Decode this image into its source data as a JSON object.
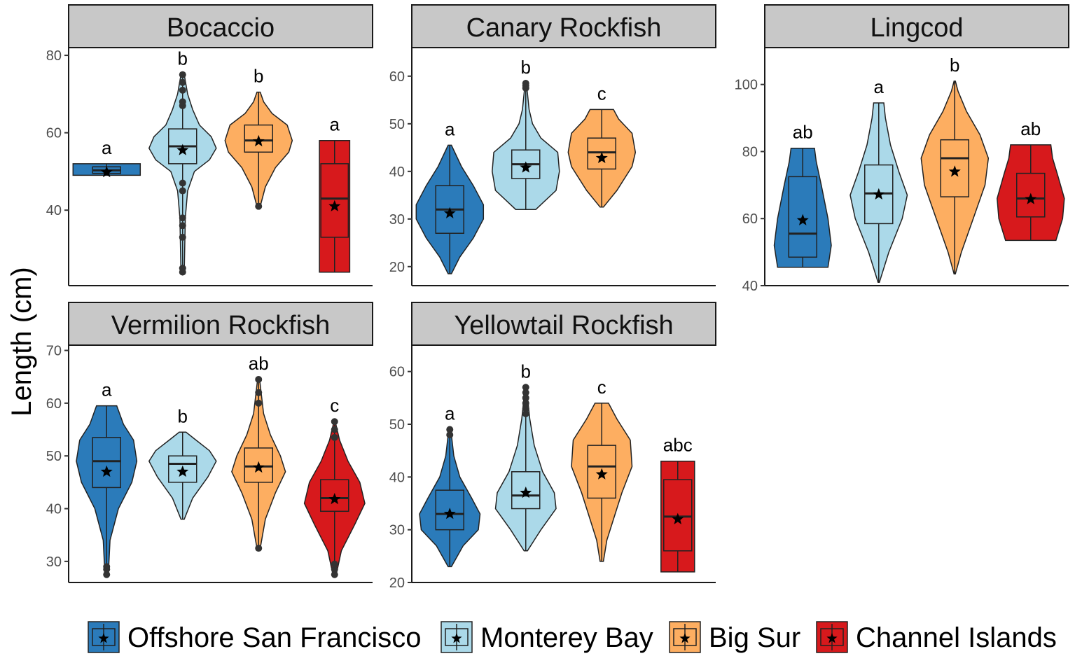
{
  "chart_data": {
    "type": "violin",
    "ylabel": "Length (cm)",
    "groups": [
      {
        "name": "Offshore San Francisco",
        "color": "#2b7bba"
      },
      {
        "name": "Monterey Bay",
        "color": "#abd9e9"
      },
      {
        "name": "Big Sur",
        "color": "#fdae61"
      },
      {
        "name": "Channel Islands",
        "color": "#d7191c"
      }
    ],
    "panels": [
      {
        "title": "Bocaccio",
        "ylim": [
          20.5,
          82
        ],
        "yticks": [
          40,
          60,
          80
        ],
        "violins": [
          {
            "group": 0,
            "min": 49,
            "max": 52,
            "q1": 49.5,
            "median": 50.3,
            "q3": 51.2,
            "mean": 49.8,
            "letter": "a",
            "profile": [
              [
                49,
                1.0
              ],
              [
                49.5,
                1.0
              ],
              [
                50.5,
                1.0
              ],
              [
                51.5,
                1.0
              ],
              [
                52,
                1.0
              ]
            ],
            "outliers": []
          },
          {
            "group": 1,
            "min": 24,
            "max": 75,
            "q1": 52,
            "median": 56.5,
            "q3": 61,
            "mean": 55.5,
            "letter": "b",
            "profile": [
              [
                24,
                0.05
              ],
              [
                38,
                0.08
              ],
              [
                45,
                0.15
              ],
              [
                50,
                0.35
              ],
              [
                53,
                0.8
              ],
              [
                56,
                1.0
              ],
              [
                59,
                0.85
              ],
              [
                62,
                0.5
              ],
              [
                66,
                0.3
              ],
              [
                70,
                0.15
              ],
              [
                75,
                0.05
              ]
            ],
            "outliers": [
              24,
              25,
              33,
              36,
              38,
              45,
              47,
              67,
              68,
              71,
              73,
              75
            ]
          },
          {
            "group": 2,
            "min": 41,
            "max": 70.5,
            "q1": 55,
            "median": 58,
            "q3": 62,
            "mean": 57.8,
            "letter": "b",
            "profile": [
              [
                41,
                0.05
              ],
              [
                46,
                0.2
              ],
              [
                51,
                0.5
              ],
              [
                55,
                0.9
              ],
              [
                58,
                1.0
              ],
              [
                62,
                0.85
              ],
              [
                65,
                0.4
              ],
              [
                68,
                0.15
              ],
              [
                70.5,
                0.05
              ]
            ],
            "outliers": [
              41
            ]
          },
          {
            "group": 3,
            "min": 24,
            "max": 58,
            "q1": 33,
            "median": 43,
            "q3": 52,
            "mean": 41,
            "letter": "a",
            "profile": [
              [
                24,
                0.45
              ],
              [
                58,
                0.45
              ]
            ],
            "outliers": []
          }
        ]
      },
      {
        "title": "Canary Rockfish",
        "ylim": [
          16,
          66
        ],
        "yticks": [
          20,
          30,
          40,
          50,
          60
        ],
        "violins": [
          {
            "group": 0,
            "min": 18.5,
            "max": 45.5,
            "q1": 27,
            "median": 32,
            "q3": 37,
            "mean": 31.2,
            "letter": "a",
            "profile": [
              [
                18.5,
                0.05
              ],
              [
                22,
                0.3
              ],
              [
                26,
                0.7
              ],
              [
                30,
                1.0
              ],
              [
                33,
                1.0
              ],
              [
                37,
                0.7
              ],
              [
                41,
                0.35
              ],
              [
                45.5,
                0.05
              ]
            ],
            "outliers": []
          },
          {
            "group": 1,
            "min": 32,
            "max": 58.5,
            "q1": 38.5,
            "median": 41.5,
            "q3": 44.5,
            "mean": 40.8,
            "letter": "b",
            "profile": [
              [
                32,
                0.3
              ],
              [
                36,
                0.9
              ],
              [
                40,
                1.0
              ],
              [
                44,
                0.95
              ],
              [
                47,
                0.45
              ],
              [
                50,
                0.2
              ],
              [
                53,
                0.1
              ],
              [
                58.5,
                0.02
              ]
            ],
            "outliers": [
              57.5,
              58,
              58.5
            ]
          },
          {
            "group": 2,
            "min": 32.5,
            "max": 53,
            "q1": 40.5,
            "median": 44,
            "q3": 47,
            "mean": 42.8,
            "letter": "c",
            "profile": [
              [
                32.5,
                0.05
              ],
              [
                36,
                0.45
              ],
              [
                41,
                0.9
              ],
              [
                44,
                1.0
              ],
              [
                48,
                0.9
              ],
              [
                51,
                0.5
              ],
              [
                53,
                0.35
              ]
            ],
            "outliers": []
          }
        ]
      },
      {
        "title": "Lingcod",
        "ylim": [
          40,
          111
        ],
        "yticks": [
          40,
          60,
          80,
          100
        ],
        "violins": [
          {
            "group": 0,
            "min": 45.5,
            "max": 81,
            "q1": 48.5,
            "median": 55.5,
            "q3": 72.5,
            "mean": 59.5,
            "letter": "ab",
            "profile": [
              [
                45.5,
                0.75
              ],
              [
                52,
                0.85
              ],
              [
                60,
                0.75
              ],
              [
                70,
                0.55
              ],
              [
                77,
                0.4
              ],
              [
                81,
                0.35
              ]
            ],
            "outliers": []
          },
          {
            "group": 1,
            "min": 41,
            "max": 94.5,
            "q1": 58.5,
            "median": 67.5,
            "q3": 76,
            "mean": 67.2,
            "letter": "a",
            "profile": [
              [
                41,
                0.02
              ],
              [
                50,
                0.3
              ],
              [
                60,
                0.7
              ],
              [
                67,
                0.85
              ],
              [
                74,
                0.6
              ],
              [
                82,
                0.35
              ],
              [
                90,
                0.2
              ],
              [
                94.5,
                0.15
              ]
            ],
            "outliers": []
          },
          {
            "group": 2,
            "min": 43.5,
            "max": 101,
            "q1": 66.5,
            "median": 78,
            "q3": 83.5,
            "mean": 74,
            "letter": "b",
            "profile": [
              [
                43.5,
                0.02
              ],
              [
                50,
                0.2
              ],
              [
                60,
                0.55
              ],
              [
                70,
                0.9
              ],
              [
                78,
                1.0
              ],
              [
                85,
                0.75
              ],
              [
                92,
                0.35
              ],
              [
                98,
                0.1
              ],
              [
                101,
                0.02
              ]
            ],
            "outliers": []
          },
          {
            "group": 3,
            "min": 53.5,
            "max": 82,
            "q1": 60.5,
            "median": 66,
            "q3": 73.5,
            "mean": 65.8,
            "letter": "ab",
            "profile": [
              [
                53.5,
                0.75
              ],
              [
                60,
                0.95
              ],
              [
                66,
                1.0
              ],
              [
                73,
                0.8
              ],
              [
                78,
                0.65
              ],
              [
                82,
                0.6
              ]
            ],
            "outliers": []
          }
        ]
      },
      {
        "title": "Vermilion Rockfish",
        "ylim": [
          26,
          71
        ],
        "yticks": [
          30,
          40,
          50,
          60,
          70
        ],
        "violins": [
          {
            "group": 0,
            "min": 27.5,
            "max": 59.5,
            "q1": 44,
            "median": 49,
            "q3": 53.5,
            "mean": 47,
            "letter": "a",
            "profile": [
              [
                27.5,
                0.05
              ],
              [
                34,
                0.1
              ],
              [
                40,
                0.35
              ],
              [
                45,
                0.75
              ],
              [
                49,
                0.9
              ],
              [
                53,
                0.8
              ],
              [
                56,
                0.5
              ],
              [
                59.5,
                0.3
              ]
            ],
            "outliers": [
              27.5,
              28.5,
              29
            ]
          },
          {
            "group": 1,
            "min": 38,
            "max": 54.5,
            "q1": 45,
            "median": 48.5,
            "q3": 50,
            "mean": 47,
            "letter": "b",
            "profile": [
              [
                38,
                0.05
              ],
              [
                42,
                0.3
              ],
              [
                46,
                0.75
              ],
              [
                49,
                1.0
              ],
              [
                51,
                0.8
              ],
              [
                53,
                0.4
              ],
              [
                54.5,
                0.1
              ]
            ],
            "outliers": []
          },
          {
            "group": 2,
            "min": 32.5,
            "max": 64.5,
            "q1": 45,
            "median": 48,
            "q3": 51.5,
            "mean": 47.8,
            "letter": "ab",
            "profile": [
              [
                32.5,
                0.05
              ],
              [
                38,
                0.2
              ],
              [
                43,
                0.5
              ],
              [
                47,
                0.8
              ],
              [
                50,
                0.65
              ],
              [
                54,
                0.35
              ],
              [
                58,
                0.15
              ],
              [
                64.5,
                0.03
              ]
            ],
            "outliers": [
              32.5,
              60,
              62,
              64.5
            ]
          },
          {
            "group": 3,
            "min": 27.5,
            "max": 56.5,
            "q1": 39.5,
            "median": 42,
            "q3": 45.5,
            "mean": 41.8,
            "letter": "c",
            "profile": [
              [
                27.5,
                0.05
              ],
              [
                32,
                0.2
              ],
              [
                37,
                0.6
              ],
              [
                41,
                0.9
              ],
              [
                45,
                0.75
              ],
              [
                49,
                0.4
              ],
              [
                53,
                0.15
              ],
              [
                56.5,
                0.02
              ]
            ],
            "outliers": [
              27.5,
              28.5,
              29.5,
              53.5,
              55,
              56.5
            ]
          }
        ]
      },
      {
        "title": "Yellowtail Rockfish",
        "ylim": [
          20,
          65
        ],
        "yticks": [
          20,
          30,
          40,
          50,
          60
        ],
        "violins": [
          {
            "group": 0,
            "min": 23,
            "max": 49,
            "q1": 30,
            "median": 33,
            "q3": 37.5,
            "mean": 33,
            "letter": "a",
            "profile": [
              [
                23,
                0.05
              ],
              [
                27,
                0.4
              ],
              [
                30,
                0.85
              ],
              [
                33,
                0.9
              ],
              [
                36,
                0.65
              ],
              [
                40,
                0.3
              ],
              [
                44,
                0.12
              ],
              [
                49,
                0.03
              ]
            ],
            "outliers": [
              48,
              49
            ]
          },
          {
            "group": 1,
            "min": 26,
            "max": 57,
            "q1": 34,
            "median": 36.5,
            "q3": 41,
            "mean": 37,
            "letter": "b",
            "profile": [
              [
                26,
                0.05
              ],
              [
                30,
                0.45
              ],
              [
                34,
                0.9
              ],
              [
                37,
                0.85
              ],
              [
                41,
                0.5
              ],
              [
                46,
                0.25
              ],
              [
                51,
                0.12
              ],
              [
                57,
                0.02
              ]
            ],
            "outliers": [
              52,
              53,
              54,
              55,
              56,
              57
            ]
          },
          {
            "group": 2,
            "min": 24,
            "max": 54,
            "q1": 36,
            "median": 42,
            "q3": 46,
            "mean": 40.5,
            "letter": "c",
            "profile": [
              [
                24,
                0.05
              ],
              [
                28,
                0.15
              ],
              [
                32,
                0.35
              ],
              [
                37,
                0.6
              ],
              [
                42,
                0.9
              ],
              [
                47,
                0.85
              ],
              [
                51,
                0.45
              ],
              [
                54,
                0.2
              ]
            ],
            "outliers": []
          },
          {
            "group": 3,
            "min": 22,
            "max": 43,
            "q1": 26,
            "median": 32.5,
            "q3": 39.5,
            "mean": 32,
            "letter": "abc",
            "profile": [
              [
                22,
                0.5
              ],
              [
                43,
                0.5
              ]
            ],
            "outliers": []
          }
        ]
      }
    ]
  }
}
